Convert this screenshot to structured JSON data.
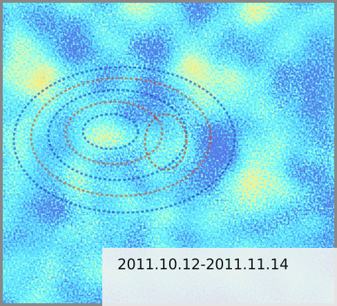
{
  "label": "2011.10.12-2011.11.14"
}
